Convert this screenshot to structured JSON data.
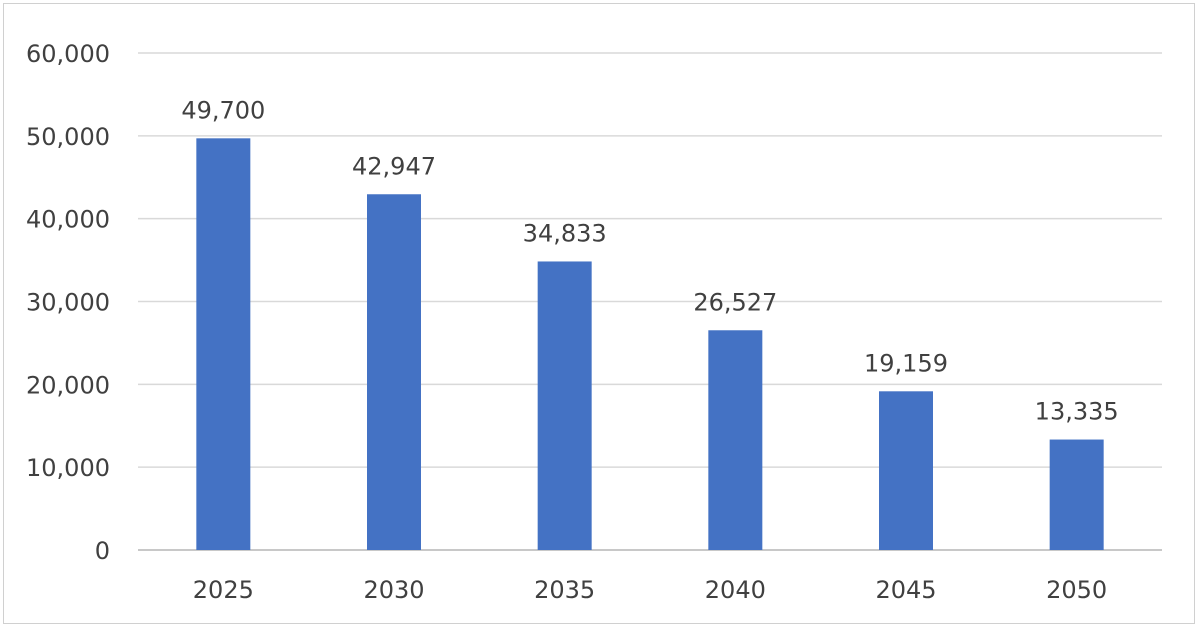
{
  "chart_data": {
    "type": "bar",
    "categories": [
      "2025",
      "2030",
      "2035",
      "2040",
      "2045",
      "2050"
    ],
    "values": [
      49700,
      42947,
      34833,
      26527,
      19159,
      13335
    ],
    "data_labels": [
      "49,700",
      "42,947",
      "34,833",
      "26,527",
      "19,159",
      "13,335"
    ],
    "ylim": [
      0,
      60000
    ],
    "yticks": [
      0,
      10000,
      20000,
      30000,
      40000,
      50000,
      60000
    ],
    "ytick_labels": [
      "0",
      "10,000",
      "20,000",
      "30,000",
      "40,000",
      "50,000",
      "60,000"
    ],
    "grid": true,
    "legend": "none",
    "colors": {
      "bar": "#4472c4",
      "grid": "#d9d9d9",
      "text": "#404040"
    }
  }
}
